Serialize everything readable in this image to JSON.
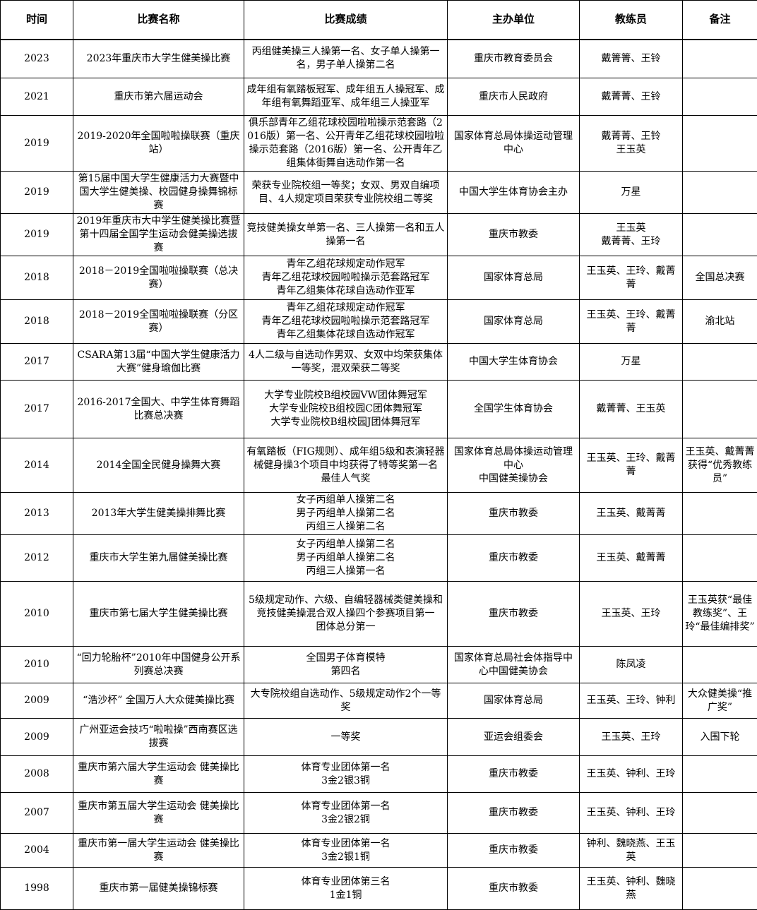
{
  "table": {
    "headers": [
      "时间",
      "比赛名称",
      "比赛成绩",
      "主办单位",
      "教练员",
      "备注"
    ],
    "rows": [
      {
        "year": "2023",
        "name": "2023年重庆市大学生健美操比赛",
        "result": "丙组健美操三人操第一名、女子单人操第一名，男子单人操第二名",
        "organizer": "重庆市教育委员会",
        "coach": "戴箐箐、王铃",
        "note": ""
      },
      {
        "year": "2021",
        "name": "重庆市第六届运动会",
        "result": "成年组有氧踏板冠军、成年组五人操冠军、成年组有氧舞蹈亚军、成年组三人操亚军",
        "organizer": "重庆市人民政府",
        "coach": "戴菁菁、王铃",
        "note": ""
      },
      {
        "year": "2019",
        "name": "2019-2020年全国啦啦操联赛（重庆站）",
        "result": "俱乐部青年乙组花球校园啦啦操示范套路（2016版）第一名、公开青年乙组花球校园啦啦操示范套路（2016版）第一名、公开青年乙组集体街舞自选动作第一名",
        "organizer": "国家体育总局体操运动管理中心",
        "coach": "戴菁菁、王铃\n王玉英",
        "note": ""
      },
      {
        "year": "2019",
        "name": "第15届中国大学生健康活力大赛暨中国大学生健美操、校园健身操舞锦标赛",
        "result": "荣获专业院校组一等奖；女双、男双自编项目、4人规定项目荣获专业院校组二等奖",
        "organizer": "中国大学生体育协会主办",
        "coach": "万星",
        "note": ""
      },
      {
        "year": "2019",
        "name": "2019年重庆市大中学生健美操比赛暨第十四届全国学生运动会健美操选拔赛",
        "result": "竞技健美操女单第一名、三人操第一名和五人操第一名",
        "organizer": "重庆市教委",
        "coach": "王玉英\n戴菁菁、王玲",
        "note": ""
      },
      {
        "year": "2018",
        "name": "2018－2019全国啦啦操联赛（总决赛）",
        "result": "青年乙组花球规定动作冠军\n青年乙组花球校园啦啦操示范套路冠军\n青年乙组集体花球自选动作亚军",
        "organizer": "国家体育总局",
        "coach": "王玉英、王玲、戴菁菁",
        "note": "全国总决赛"
      },
      {
        "year": "2018",
        "name": "2018－2019全国啦啦操联赛（分区赛）",
        "result": "青年乙组花球规定动作冠军\n青年乙组花球校园啦啦操示范套路冠军\n青年乙组集体花球自选动作冠军",
        "organizer": "国家体育总局",
        "coach": "王玉英、王玲、戴菁菁",
        "note": "渝北站"
      },
      {
        "year": "2017",
        "name": "CSARA第13届“中国大学生健康活力大赛”健身瑜伽比赛",
        "result": "4人二级与自选动作男双、女双中均荣获集体一等奖，混双荣获二等奖",
        "organizer": "中国大学生体育协会",
        "coach": "万星",
        "note": ""
      },
      {
        "year": "2017",
        "name": "2016-2017全国大、中学生体育舞蹈比赛总决赛",
        "result": "大学专业院校B组校园VW团体舞冠军\n大学专业院校B组校园C团体舞冠军\n大学专业院校B组校园J团体舞冠军",
        "organizer": "全国学生体育协会",
        "coach": "戴菁菁、王玉英",
        "note": ""
      },
      {
        "year": "2014",
        "name": "2014全国全民健身操舞大赛",
        "result": "有氧踏板（FIG规则）、成年组5级和表演轻器械健身操3个项目中均获得了特等奖第一名\n最佳人气奖",
        "organizer": "国家体育总局体操运动管理中心\n中国健美操协会",
        "coach": "王玉英、王玲、戴菁菁",
        "note": "王玉英、戴菁菁获得“优秀教练员”"
      },
      {
        "year": "2013",
        "name": "2013年大学生健美操排舞比赛",
        "result": "女子丙组单人操第二名\n男子丙组单人操第二名\n丙组三人操第二名",
        "organizer": "重庆市教委",
        "coach": "王玉英、戴菁菁",
        "note": ""
      },
      {
        "year": "2012",
        "name": "重庆市大学生第九届健美操比赛",
        "result": "女子丙组单人操第二名\n男子丙组单人操第二名\n丙组三人操第一名",
        "organizer": "重庆市教委",
        "coach": "王玉英、戴菁菁",
        "note": ""
      },
      {
        "year": "2010",
        "name": "重庆市第七届大学生健美操比赛",
        "result": "5级规定动作、六级、自编轻器械类健美操和竞技健美操混合双人操四个参赛项目第一\n团体总分第一",
        "organizer": "重庆市教委",
        "coach": "王玉英、王玲",
        "note": "王玉英获“最佳教练奖”、王玲“最佳编排奖”"
      },
      {
        "year": "2010",
        "name": "“回力轮胎杯”2010年中国健身公开系列赛总决赛",
        "result": "全国男子体育模特\n第四名",
        "organizer": "国家体育总局社会体指导中心中国健美协会",
        "coach": "陈凤凌",
        "note": ""
      },
      {
        "year": "2009",
        "name": "“浩沙杯” 全国万人大众健美操比赛",
        "result": "大专院校组自选动作、5级规定动作2个一等奖",
        "organizer": "国家体育总局",
        "coach": "王玉英、王玲、钟利",
        "note": "大众健美操“推广奖”"
      },
      {
        "year": "2009",
        "name": "广州亚运会技巧“啦啦操”西南赛区选拔赛",
        "result": "一等奖",
        "organizer": "亚运会组委会",
        "coach": "王玉英、王玲",
        "note": "入围下轮"
      },
      {
        "year": "2008",
        "name": "重庆市第六届大学生运动会 健美操比赛",
        "result": "体育专业团体第一名\n3金2银3铜",
        "organizer": "重庆市教委",
        "coach": "王玉英、钟利、王玲",
        "note": ""
      },
      {
        "year": "2007",
        "name": "重庆市第五届大学生运动会 健美操比赛",
        "result": "体育专业团体第一名\n3金2银2铜",
        "organizer": "重庆市教委",
        "coach": "王玉英、钟利、王玲",
        "note": ""
      },
      {
        "year": "2004",
        "name": "重庆市第一届大学生运动会 健美操比赛",
        "result": "体育专业团体第一名\n3金2银1铜",
        "organizer": "重庆市教委",
        "coach": "钟利、魏晓燕、王玉英",
        "note": ""
      },
      {
        "year": "1998",
        "name": "重庆市第一届健美操锦标赛",
        "result": "体育专业团体第三名\n1金1铜",
        "organizer": "重庆市教委",
        "coach": "王玉英、钟利、魏晓燕",
        "note": ""
      }
    ]
  }
}
